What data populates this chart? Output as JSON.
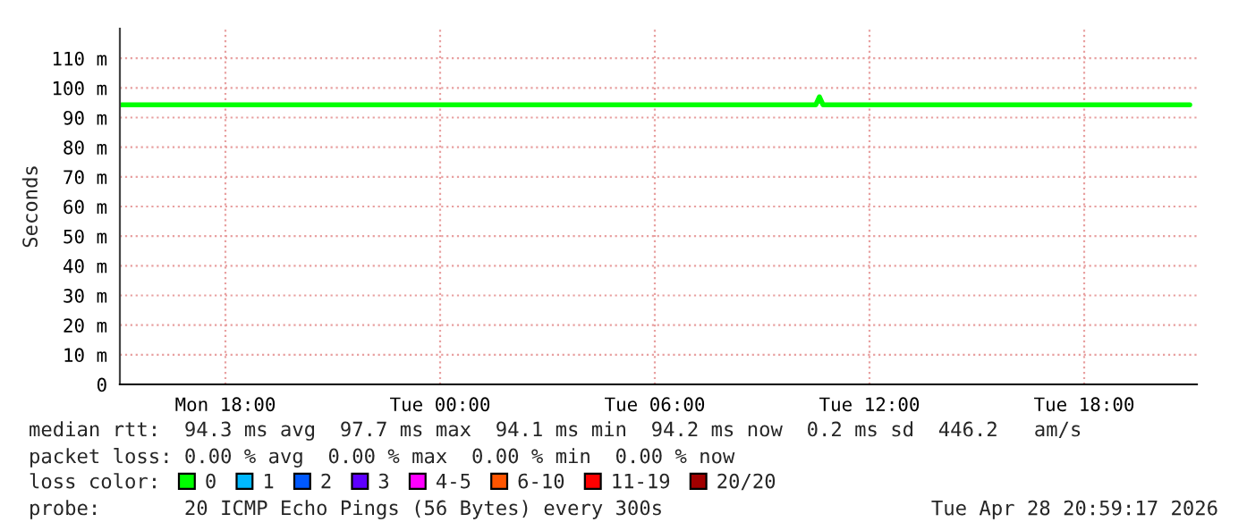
{
  "chart_data": {
    "type": "line",
    "ylabel": "Seconds",
    "legend_title": "loss color:",
    "legend": "bottom",
    "grid": true,
    "line_style": "solid",
    "marker": "none",
    "xlim": [
      "2026-04-27T15:03",
      "2026-04-28T21:09"
    ],
    "xticks": [
      {
        "value": "2026-04-27T18:00",
        "label": "Mon 18:00"
      },
      {
        "value": "2026-04-28T00:00",
        "label": "Tue 00:00"
      },
      {
        "value": "2026-04-28T06:00",
        "label": "Tue 06:00"
      },
      {
        "value": "2026-04-28T12:00",
        "label": "Tue 12:00"
      },
      {
        "value": "2026-04-28T18:00",
        "label": "Tue 18:00"
      }
    ],
    "ylim": [
      0,
      120
    ],
    "yticks": [
      0,
      {
        "value": 10,
        "label": "10 m"
      },
      {
        "value": 20,
        "label": "20 m"
      },
      {
        "value": 30,
        "label": "30 m"
      },
      {
        "value": 40,
        "label": "40 m"
      },
      {
        "value": 50,
        "label": "50 m"
      },
      {
        "value": 60,
        "label": "60 m"
      },
      {
        "value": 70,
        "label": "70 m"
      },
      {
        "value": 80,
        "label": "80 m"
      },
      {
        "value": 90,
        "label": "90 m"
      },
      {
        "value": 100,
        "label": "100 m"
      },
      {
        "value": 110,
        "label": "110 m"
      }
    ],
    "x": [
      "2026-04-27T15:06",
      "2026-04-27T16:00",
      "2026-04-27T17:00",
      "2026-04-27T18:00",
      "2026-04-27T19:00",
      "2026-04-27T20:00",
      "2026-04-27T21:00",
      "2026-04-27T22:00",
      "2026-04-27T23:00",
      "2026-04-28T00:00",
      "2026-04-28T01:00",
      "2026-04-28T02:00",
      "2026-04-28T03:00",
      "2026-04-28T04:00",
      "2026-04-28T05:00",
      "2026-04-28T06:00",
      "2026-04-28T07:00",
      "2026-04-28T08:00",
      "2026-04-28T09:00",
      "2026-04-28T10:00",
      "2026-04-28T10:30",
      "2026-04-28T10:36",
      "2026-04-28T10:42",
      "2026-04-28T11:00",
      "2026-04-28T12:00",
      "2026-04-28T13:00",
      "2026-04-28T14:00",
      "2026-04-28T15:00",
      "2026-04-28T16:00",
      "2026-04-28T17:00",
      "2026-04-28T18:00",
      "2026-04-28T19:00",
      "2026-04-28T20:00",
      "2026-04-28T20:57"
    ],
    "series": [
      {
        "name": "0",
        "color": "#00ff00",
        "values": [
          94.3,
          94.3,
          94.3,
          94.3,
          94.3,
          94.3,
          94.3,
          94.3,
          94.3,
          94.3,
          94.3,
          94.3,
          94.3,
          94.3,
          94.3,
          94.3,
          94.3,
          94.3,
          94.3,
          94.3,
          94.3,
          97.0,
          94.3,
          94.3,
          94.3,
          94.3,
          94.3,
          94.3,
          94.3,
          94.3,
          94.3,
          94.3,
          94.3,
          94.3
        ]
      },
      {
        "name": "1",
        "color": "#00b8ff",
        "values": [
          null,
          null,
          null,
          null,
          null,
          null,
          null,
          null,
          null,
          null,
          null,
          null,
          null,
          null,
          null,
          null,
          null,
          null,
          null,
          null,
          null,
          null,
          null,
          null,
          null,
          null,
          null,
          null,
          null,
          null,
          null,
          null,
          null,
          null
        ]
      },
      {
        "name": "2",
        "color": "#0059ff",
        "values": [
          null,
          null,
          null,
          null,
          null,
          null,
          null,
          null,
          null,
          null,
          null,
          null,
          null,
          null,
          null,
          null,
          null,
          null,
          null,
          null,
          null,
          null,
          null,
          null,
          null,
          null,
          null,
          null,
          null,
          null,
          null,
          null,
          null,
          null
        ]
      },
      {
        "name": "3",
        "color": "#5e00ff",
        "values": [
          null,
          null,
          null,
          null,
          null,
          null,
          null,
          null,
          null,
          null,
          null,
          null,
          null,
          null,
          null,
          null,
          null,
          null,
          null,
          null,
          null,
          null,
          null,
          null,
          null,
          null,
          null,
          null,
          null,
          null,
          null,
          null,
          null,
          null
        ]
      },
      {
        "name": "4-5",
        "color": "#ff00ff",
        "values": [
          null,
          null,
          null,
          null,
          null,
          null,
          null,
          null,
          null,
          null,
          null,
          null,
          null,
          null,
          null,
          null,
          null,
          null,
          null,
          null,
          null,
          null,
          null,
          null,
          null,
          null,
          null,
          null,
          null,
          null,
          null,
          null,
          null,
          null
        ]
      },
      {
        "name": "6-10",
        "color": "#ff5500",
        "values": [
          null,
          null,
          null,
          null,
          null,
          null,
          null,
          null,
          null,
          null,
          null,
          null,
          null,
          null,
          null,
          null,
          null,
          null,
          null,
          null,
          null,
          null,
          null,
          null,
          null,
          null,
          null,
          null,
          null,
          null,
          null,
          null,
          null,
          null
        ]
      },
      {
        "name": "11-19",
        "color": "#ff0000",
        "values": [
          null,
          null,
          null,
          null,
          null,
          null,
          null,
          null,
          null,
          null,
          null,
          null,
          null,
          null,
          null,
          null,
          null,
          null,
          null,
          null,
          null,
          null,
          null,
          null,
          null,
          null,
          null,
          null,
          null,
          null,
          null,
          null,
          null,
          null
        ]
      },
      {
        "name": "20/20",
        "color": "#a10000",
        "values": [
          null,
          null,
          null,
          null,
          null,
          null,
          null,
          null,
          null,
          null,
          null,
          null,
          null,
          null,
          null,
          null,
          null,
          null,
          null,
          null,
          null,
          null,
          null,
          null,
          null,
          null,
          null,
          null,
          null,
          null,
          null,
          null,
          null,
          null
        ]
      }
    ],
    "annotations": [
      "median rtt:  94.3 ms avg  97.7 ms max  94.1 ms min  94.2 ms now  0.2 ms sd  446.2   am/s",
      "packet loss: 0.00 % avg  0.00 % max  0.00 % min  0.00 % now",
      "probe:       20 ICMP Echo Pings (56 Bytes) every 300s",
      "Tue Apr 28 20:59:17 2026"
    ]
  }
}
